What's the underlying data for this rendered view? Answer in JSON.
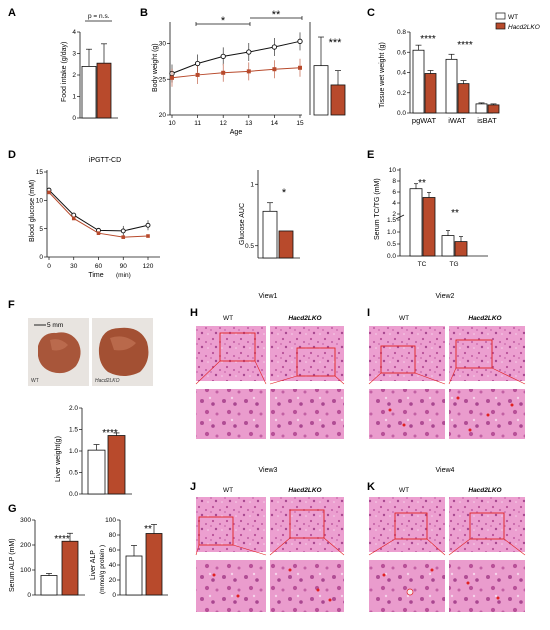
{
  "colors": {
    "wt": "#ffffff",
    "ko": "#b84a2c",
    "stroke": "#111111",
    "tissue": "#e9a3cf",
    "tissue_dark": "#c965a8",
    "liver": "#a8563a",
    "box": "#e02020"
  },
  "panels": {
    "A": {
      "letter": "A",
      "ylabel": "Food intake (g/day)",
      "sig": "p = n.s.",
      "ticks": [
        "0",
        "1",
        "2",
        "3",
        "4"
      ]
    },
    "B": {
      "letter": "B",
      "ylabel": "Body weight (g)",
      "xlabel": "Age",
      "sig1": "*",
      "sig2": "**",
      "sig3": "***",
      "yticks": [
        "20",
        "25",
        "30"
      ],
      "xticks": [
        "10",
        "11",
        "12",
        "13",
        "14",
        "15"
      ]
    },
    "C": {
      "letter": "C",
      "ylabel": "Tissue wet weight (g)",
      "sig1": "****",
      "sig2": "****",
      "yticks": [
        "0.0",
        "0.2",
        "0.4",
        "0.6",
        "0.8"
      ],
      "cats": [
        "pgWAT",
        "iWAT",
        "isBAT"
      ]
    },
    "D": {
      "letter": "D",
      "title": "iPGTT-CD",
      "ylabel": "Blood glucose (mM)",
      "xlabel": "Time",
      "xunit": "(min)",
      "yticks": [
        "0",
        "5",
        "10",
        "15"
      ],
      "xticks": [
        "0",
        "30",
        "60",
        "90",
        "120"
      ],
      "auc_label": "Glucose AUC",
      "auc_ticks": [
        "0.5",
        "1"
      ],
      "auc_sig": "*"
    },
    "E": {
      "letter": "E",
      "ylabel": "Serum TC/TG (mM)",
      "sig1": "**",
      "sig2": "**",
      "yticks": [
        "0.0",
        "0.5",
        "1.0",
        "1.5",
        "2",
        "4",
        "6",
        "8",
        "10"
      ],
      "cats": [
        "TC",
        "TG"
      ]
    },
    "F": {
      "letter": "F",
      "scale": "5 mm",
      "wt": "WT",
      "ko": "Hacd2LKO",
      "ylabel": "Liver weight(g)",
      "sig": "****",
      "yticks": [
        "0.0",
        "0.5",
        "1.0",
        "1.5",
        "2.0"
      ]
    },
    "G": {
      "letter": "G",
      "ylabel1": "Serum ALP (mM)",
      "yticks1": [
        "0",
        "100",
        "200",
        "300"
      ],
      "sig1": "****",
      "ylabel2": "Liver ALP",
      "ylabel2b": "(mmol/g protein )",
      "yticks2": [
        "0",
        "20",
        "40",
        "60",
        "80",
        "100"
      ],
      "sig2": "**"
    },
    "H": {
      "letter": "H",
      "view": "View1",
      "wt": "WT",
      "ko": "Hacd2LKO"
    },
    "I": {
      "letter": "I",
      "view": "View2",
      "wt": "WT",
      "ko": "Hacd2LKO"
    },
    "J": {
      "letter": "J",
      "view": "View3",
      "wt": "WT",
      "ko": "Hacd2LKO"
    },
    "K": {
      "letter": "K",
      "view": "View4",
      "wt": "WT",
      "ko": "Hacd2LKO"
    }
  },
  "legend": {
    "wt": "WT",
    "ko": "Hacd2LKO"
  },
  "chart_data": [
    {
      "panel": "A",
      "type": "bar",
      "categories": [
        "WT",
        "Hacd2LKO"
      ],
      "values": [
        2.4,
        2.55
      ],
      "errors": [
        0.8,
        0.9
      ],
      "ylim": [
        0,
        4
      ],
      "ylabel": "Food intake (g/day)"
    },
    {
      "panel": "B",
      "type": "line",
      "x": [
        10,
        11,
        12,
        13,
        14,
        15
      ],
      "series": [
        {
          "name": "WT",
          "values": [
            25.8,
            27.2,
            28.2,
            28.8,
            29.5,
            30.3
          ]
        },
        {
          "name": "Hacd2LKO",
          "values": [
            25.2,
            25.6,
            25.9,
            26.1,
            26.4,
            26.6
          ]
        }
      ],
      "xlabel": "Age",
      "ylabel": "Body weight (g)",
      "ylim": [
        20,
        33
      ]
    },
    {
      "panel": "B-inset",
      "type": "bar",
      "categories": [
        "WT",
        "Hacd2LKO"
      ],
      "values": [
        26.9,
        24.2
      ],
      "ylim": [
        20,
        33
      ]
    },
    {
      "panel": "C",
      "type": "bar",
      "categories": [
        "pgWAT",
        "iWAT",
        "isBAT"
      ],
      "series": [
        {
          "name": "WT",
          "values": [
            0.62,
            0.53,
            0.09
          ]
        },
        {
          "name": "Hacd2LKO",
          "values": [
            0.39,
            0.29,
            0.08
          ]
        }
      ],
      "ylim": [
        0,
        0.8
      ],
      "ylabel": "Tissue wet weight (g)"
    },
    {
      "panel": "D",
      "type": "line",
      "title": "iPGTT-CD",
      "x": [
        0,
        30,
        60,
        90,
        120
      ],
      "series": [
        {
          "name": "WT",
          "values": [
            11.8,
            7.4,
            4.7,
            4.6,
            5.6
          ]
        },
        {
          "name": "Hacd2LKO",
          "values": [
            11.4,
            6.8,
            4.2,
            3.5,
            3.7
          ]
        }
      ],
      "xlabel": "Time (min)",
      "ylabel": "Blood glucose (mM)",
      "ylim": [
        0,
        15
      ]
    },
    {
      "panel": "D-AUC",
      "type": "bar",
      "categories": [
        "WT",
        "Hacd2LKO"
      ],
      "values": [
        0.78,
        0.62
      ],
      "ylim": [
        0.4,
        1.1
      ],
      "ylabel": "Glucose AUC"
    },
    {
      "panel": "E",
      "type": "bar",
      "categories": [
        "TC",
        "TG"
      ],
      "series": [
        {
          "name": "WT",
          "values": [
            6.6,
            0.85
          ]
        },
        {
          "name": "Hacd2LKO",
          "values": [
            5.0,
            0.6
          ]
        }
      ],
      "ylabel": "Serum TC/TG (mM)"
    },
    {
      "panel": "F",
      "type": "bar",
      "categories": [
        "WT",
        "Hacd2LKO"
      ],
      "values": [
        1.02,
        1.36
      ],
      "ylim": [
        0,
        2
      ],
      "ylabel": "Liver weight(g)"
    },
    {
      "panel": "G-serum",
      "type": "bar",
      "categories": [
        "WT",
        "Hacd2LKO"
      ],
      "values": [
        78,
        215
      ],
      "ylim": [
        0,
        300
      ],
      "ylabel": "Serum ALP (mM)"
    },
    {
      "panel": "G-liver",
      "type": "bar",
      "categories": [
        "WT",
        "Hacd2LKO"
      ],
      "values": [
        52,
        82
      ],
      "ylim": [
        0,
        100
      ],
      "ylabel": "Liver ALP (mmol/g protein )"
    }
  ]
}
